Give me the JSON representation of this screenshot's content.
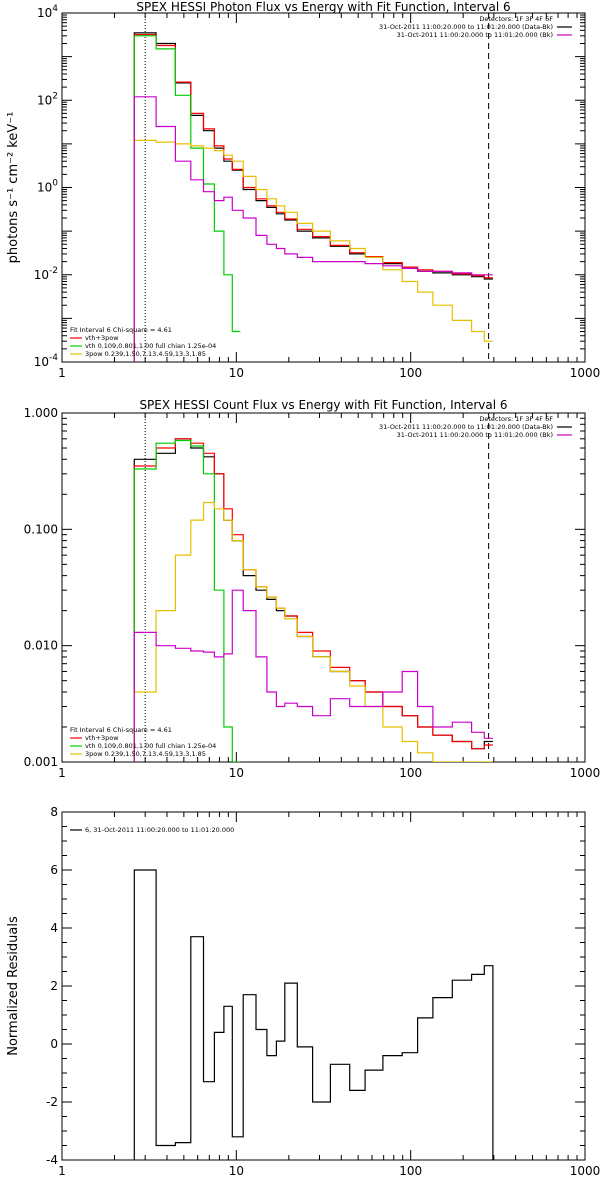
{
  "chart_data": [
    {
      "type": "line",
      "title": "SPEX HESSI Photon Flux vs Energy with Fit Function, Interval 6",
      "ylabel": "photons s⁻¹ cm⁻² keV⁻¹",
      "xscale": "log",
      "yscale": "log",
      "xlim": [
        1,
        1000
      ],
      "ylim": [
        0.0001,
        10000
      ],
      "xticks": [
        "1",
        "10",
        "100",
        "1000"
      ],
      "yticks": [
        {
          "v": 0.0001,
          "base": "10",
          "exp": "-4"
        },
        {
          "v": 0.01,
          "base": "10",
          "exp": "-2"
        },
        {
          "v": 1,
          "base": "10",
          "exp": "0"
        },
        {
          "v": 100,
          "base": "10",
          "exp": "2"
        },
        {
          "v": 10000,
          "base": "10",
          "exp": "4"
        }
      ],
      "vlines": [
        {
          "x": 3,
          "style": "dotted"
        },
        {
          "x": 280,
          "style": "dashed"
        }
      ],
      "legend_right": {
        "lines": [
          "Detectors: 1F 3F 4F 6F",
          "31-Oct-2011 11:00:20.000 to 11:01:20.000 (Data-Bk)",
          "31-Oct-2011 11:00:20.000 to 11:01:20.000 (Bk)"
        ],
        "placement": "top-right"
      },
      "legend_left": {
        "header": "Fit Interval 6   Chi-square = 4.61",
        "lines": [
          "vth+3pow",
          "vth 0.109,0.801,1.00  full chian 1.25e-04",
          "3pow 0.239,1.50,7.13,4.59,13.3,1.85"
        ],
        "placement": "bottom-left"
      },
      "series": [
        {
          "name": "Data-Bk",
          "color": "#000000",
          "x": [
            3,
            4,
            5,
            6,
            7,
            8,
            9,
            10,
            12,
            14,
            16,
            18,
            20,
            25,
            30,
            40,
            50,
            60,
            80,
            100,
            120,
            150,
            200,
            250,
            280
          ],
          "y": [
            3500,
            2000,
            250,
            45,
            20,
            8,
            4,
            2.5,
            0.9,
            0.5,
            0.35,
            0.25,
            0.18,
            0.1,
            0.07,
            0.045,
            0.03,
            0.025,
            0.018,
            0.014,
            0.012,
            0.011,
            0.01,
            0.009,
            0.008
          ]
        },
        {
          "name": "vth+3pow",
          "color": "#ff0000",
          "x": [
            3,
            4,
            5,
            6,
            7,
            8,
            9,
            10,
            12,
            14,
            16,
            18,
            20,
            25,
            30,
            40,
            50,
            60,
            80,
            100,
            120,
            150,
            200,
            250,
            280
          ],
          "y": [
            3200,
            1800,
            260,
            50,
            22,
            9,
            4.5,
            2.6,
            1.0,
            0.55,
            0.38,
            0.27,
            0.19,
            0.11,
            0.075,
            0.047,
            0.032,
            0.026,
            0.019,
            0.015,
            0.013,
            0.012,
            0.0105,
            0.0095,
            0.0085
          ]
        },
        {
          "name": "vth",
          "color": "#00cc00",
          "x": [
            3,
            4,
            5,
            6,
            7,
            8,
            9,
            10
          ],
          "y": [
            3000,
            1500,
            130,
            8,
            1.2,
            0.1,
            0.01,
            0.0005
          ]
        },
        {
          "name": "3pow",
          "color": "#e6c000",
          "x": [
            3,
            4,
            5,
            6,
            7,
            8,
            9,
            10,
            12,
            14,
            16,
            18,
            20,
            25,
            30,
            40,
            50,
            60,
            80,
            100,
            120,
            150,
            200,
            250,
            280
          ],
          "y": [
            12,
            11,
            10,
            9,
            8,
            7,
            5.5,
            4,
            1.8,
            0.9,
            0.55,
            0.38,
            0.27,
            0.15,
            0.1,
            0.06,
            0.04,
            0.025,
            0.013,
            0.007,
            0.004,
            0.002,
            0.0009,
            0.0005,
            0.0003
          ]
        },
        {
          "name": "Bk",
          "color": "#cc00cc",
          "x": [
            3,
            4,
            5,
            6,
            7,
            8,
            9,
            10,
            12,
            14,
            16,
            18,
            20,
            25,
            30,
            40,
            50,
            60,
            80,
            100,
            120,
            150,
            200,
            250,
            280
          ],
          "y": [
            120,
            25,
            4,
            1.5,
            0.8,
            0.5,
            0.6,
            0.3,
            0.2,
            0.08,
            0.05,
            0.04,
            0.03,
            0.025,
            0.02,
            0.02,
            0.02,
            0.018,
            0.016,
            0.014,
            0.012,
            0.012,
            0.011,
            0.01,
            0.01
          ]
        }
      ]
    },
    {
      "type": "line",
      "title": "SPEX HESSI Count Flux vs Energy with Fit Function, Interval 6",
      "ylabel": "",
      "xscale": "log",
      "yscale": "log",
      "xlim": [
        1,
        1000
      ],
      "ylim": [
        0.001,
        1
      ],
      "xticks": [
        "1",
        "10",
        "100",
        "1000"
      ],
      "yticks": [
        {
          "v": 0.001,
          "label": "0.001"
        },
        {
          "v": 0.01,
          "label": "0.010"
        },
        {
          "v": 0.1,
          "label": "0.100"
        },
        {
          "v": 1,
          "label": "1.000"
        }
      ],
      "vlines": [
        {
          "x": 3,
          "style": "dotted"
        },
        {
          "x": 280,
          "style": "dashed"
        }
      ],
      "legend_right": {
        "lines": [
          "Detectors: 1F 3F 4F 6F",
          "31-Oct-2011 11:00:20.000 to 11:01:20.000 (Data-Bk)",
          "31-Oct-2011 11:00:20.000 to 11:01:20.000 (Bk)"
        ],
        "placement": "top-right"
      },
      "legend_left": {
        "header": "Fit Interval 6   Chi-square = 4.61",
        "lines": [
          "vth+3pow",
          "vth 0.109,0.801,1.00  full chian 1.25e-04",
          "3pow 0.239,1.50,7.13,4.59,13.3,1.85"
        ],
        "placement": "bottom-left"
      },
      "series": [
        {
          "name": "Data-Bk",
          "color": "#000000",
          "x": [
            3,
            4,
            5,
            6,
            7,
            8,
            9,
            10,
            12,
            14,
            16,
            18,
            20,
            25,
            30,
            40,
            50,
            60,
            80,
            100,
            120,
            150,
            200,
            250,
            280
          ],
          "y": [
            0.4,
            0.45,
            0.6,
            0.5,
            0.42,
            0.3,
            0.12,
            0.08,
            0.04,
            0.03,
            0.025,
            0.02,
            0.018,
            0.012,
            0.008,
            0.006,
            0.005,
            0.004,
            0.003,
            0.0025,
            0.002,
            0.0017,
            0.0015,
            0.0013,
            0.0015
          ]
        },
        {
          "name": "vth+3pow",
          "color": "#ff0000",
          "x": [
            3,
            4,
            5,
            6,
            7,
            8,
            9,
            10,
            12,
            14,
            16,
            18,
            20,
            25,
            30,
            40,
            50,
            60,
            80,
            100,
            120,
            150,
            200,
            250,
            280
          ],
          "y": [
            0.35,
            0.5,
            0.6,
            0.55,
            0.45,
            0.3,
            0.15,
            0.09,
            0.045,
            0.032,
            0.026,
            0.021,
            0.018,
            0.013,
            0.009,
            0.0065,
            0.005,
            0.004,
            0.003,
            0.0025,
            0.002,
            0.0017,
            0.0015,
            0.0013,
            0.0014
          ]
        },
        {
          "name": "vth",
          "color": "#00cc00",
          "x": [
            3,
            4,
            5,
            6,
            7,
            8,
            9,
            10
          ],
          "y": [
            0.33,
            0.55,
            0.58,
            0.52,
            0.3,
            0.03,
            0.002,
            0.001
          ]
        },
        {
          "name": "3pow",
          "color": "#e6c000",
          "x": [
            3,
            4,
            5,
            6,
            7,
            8,
            9,
            10,
            12,
            14,
            16,
            18,
            20,
            25,
            30,
            40,
            50,
            60,
            80,
            100,
            120,
            150,
            200,
            250,
            280
          ],
          "y": [
            0.004,
            0.02,
            0.06,
            0.12,
            0.17,
            0.15,
            0.12,
            0.08,
            0.045,
            0.032,
            0.026,
            0.021,
            0.017,
            0.012,
            0.008,
            0.006,
            0.0045,
            0.003,
            0.002,
            0.0015,
            0.0012,
            0.001,
            0.001,
            0.001,
            0.001
          ]
        },
        {
          "name": "Bk",
          "color": "#cc00cc",
          "x": [
            3,
            4,
            5,
            6,
            7,
            8,
            9,
            10,
            12,
            14,
            16,
            18,
            20,
            25,
            30,
            40,
            50,
            60,
            80,
            100,
            120,
            150,
            200,
            250,
            280
          ],
          "y": [
            0.013,
            0.01,
            0.0095,
            0.009,
            0.0088,
            0.008,
            0.0085,
            0.03,
            0.02,
            0.008,
            0.004,
            0.003,
            0.0032,
            0.003,
            0.0025,
            0.0035,
            0.003,
            0.003,
            0.004,
            0.006,
            0.003,
            0.002,
            0.0022,
            0.0018,
            0.0016
          ]
        }
      ]
    },
    {
      "type": "line",
      "title": "",
      "ylabel": "Normalized Residuals",
      "xscale": "log",
      "xlim": [
        1,
        1000
      ],
      "ylim": [
        -4,
        8
      ],
      "xticks": [
        "1",
        "10",
        "100",
        "1000"
      ],
      "yticks": [
        {
          "v": -4,
          "label": "-4"
        },
        {
          "v": -2,
          "label": "-2"
        },
        {
          "v": 0,
          "label": "0"
        },
        {
          "v": 2,
          "label": "2"
        },
        {
          "v": 4,
          "label": "4"
        },
        {
          "v": 6,
          "label": "6"
        },
        {
          "v": 8,
          "label": "8"
        }
      ],
      "legend": {
        "lines": [
          "6, 31-Oct-2011 11:00:20.000 to 11:01:20.000"
        ],
        "placement": "top-left"
      },
      "series": [
        {
          "name": "Residuals",
          "color": "#000000",
          "x": [
            3,
            4,
            5,
            6,
            7,
            8,
            9,
            10,
            12,
            14,
            16,
            18,
            20,
            25,
            30,
            40,
            50,
            60,
            80,
            100,
            120,
            150,
            200,
            250,
            280
          ],
          "y": [
            6,
            -3.5,
            -3.4,
            3.7,
            -1.3,
            0.4,
            1.3,
            -3.2,
            1.7,
            0.5,
            -0.4,
            0.1,
            2.1,
            -0.1,
            -2.0,
            -0.7,
            -1.6,
            -0.9,
            -0.4,
            -0.3,
            0.9,
            1.6,
            2.2,
            2.4,
            2.7
          ]
        }
      ]
    }
  ]
}
